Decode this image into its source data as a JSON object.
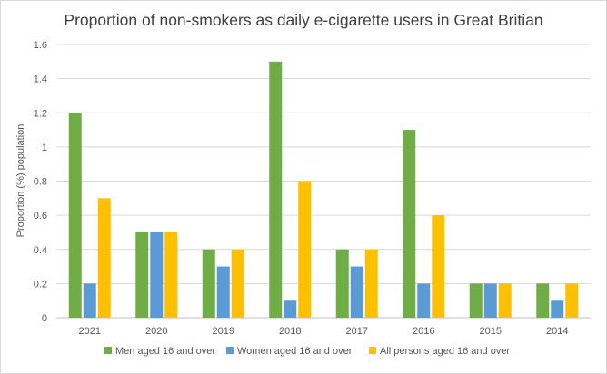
{
  "chart_data": {
    "type": "bar",
    "title": "Proportion of non-smokers as daily e-cigarette users in Great Britian",
    "xlabel": "",
    "ylabel": "Proportion (%) population",
    "ylim": [
      0,
      1.6
    ],
    "yticks": [
      "0",
      "0.2",
      "0.4",
      "0.6",
      "0.8",
      "1",
      "1.2",
      "1.4",
      "1.6"
    ],
    "grid": true,
    "legend_position": "bottom",
    "categories": [
      "2021",
      "2020",
      "2019",
      "2018",
      "2017",
      "2016",
      "2015",
      "2014"
    ],
    "series": [
      {
        "name": "Men aged 16 and over",
        "color": "#70ad47",
        "values": [
          1.2,
          0.5,
          0.4,
          1.5,
          0.4,
          1.1,
          0.2,
          0.2
        ]
      },
      {
        "name": "Women aged 16 and over",
        "color": "#5b9bd5",
        "values": [
          0.2,
          0.5,
          0.3,
          0.1,
          0.3,
          0.2,
          0.2,
          0.1
        ]
      },
      {
        "name": "All persons aged 16 and over",
        "color": "#ffc000",
        "values": [
          0.7,
          0.5,
          0.4,
          0.8,
          0.4,
          0.6,
          0.2,
          0.2
        ]
      }
    ]
  }
}
